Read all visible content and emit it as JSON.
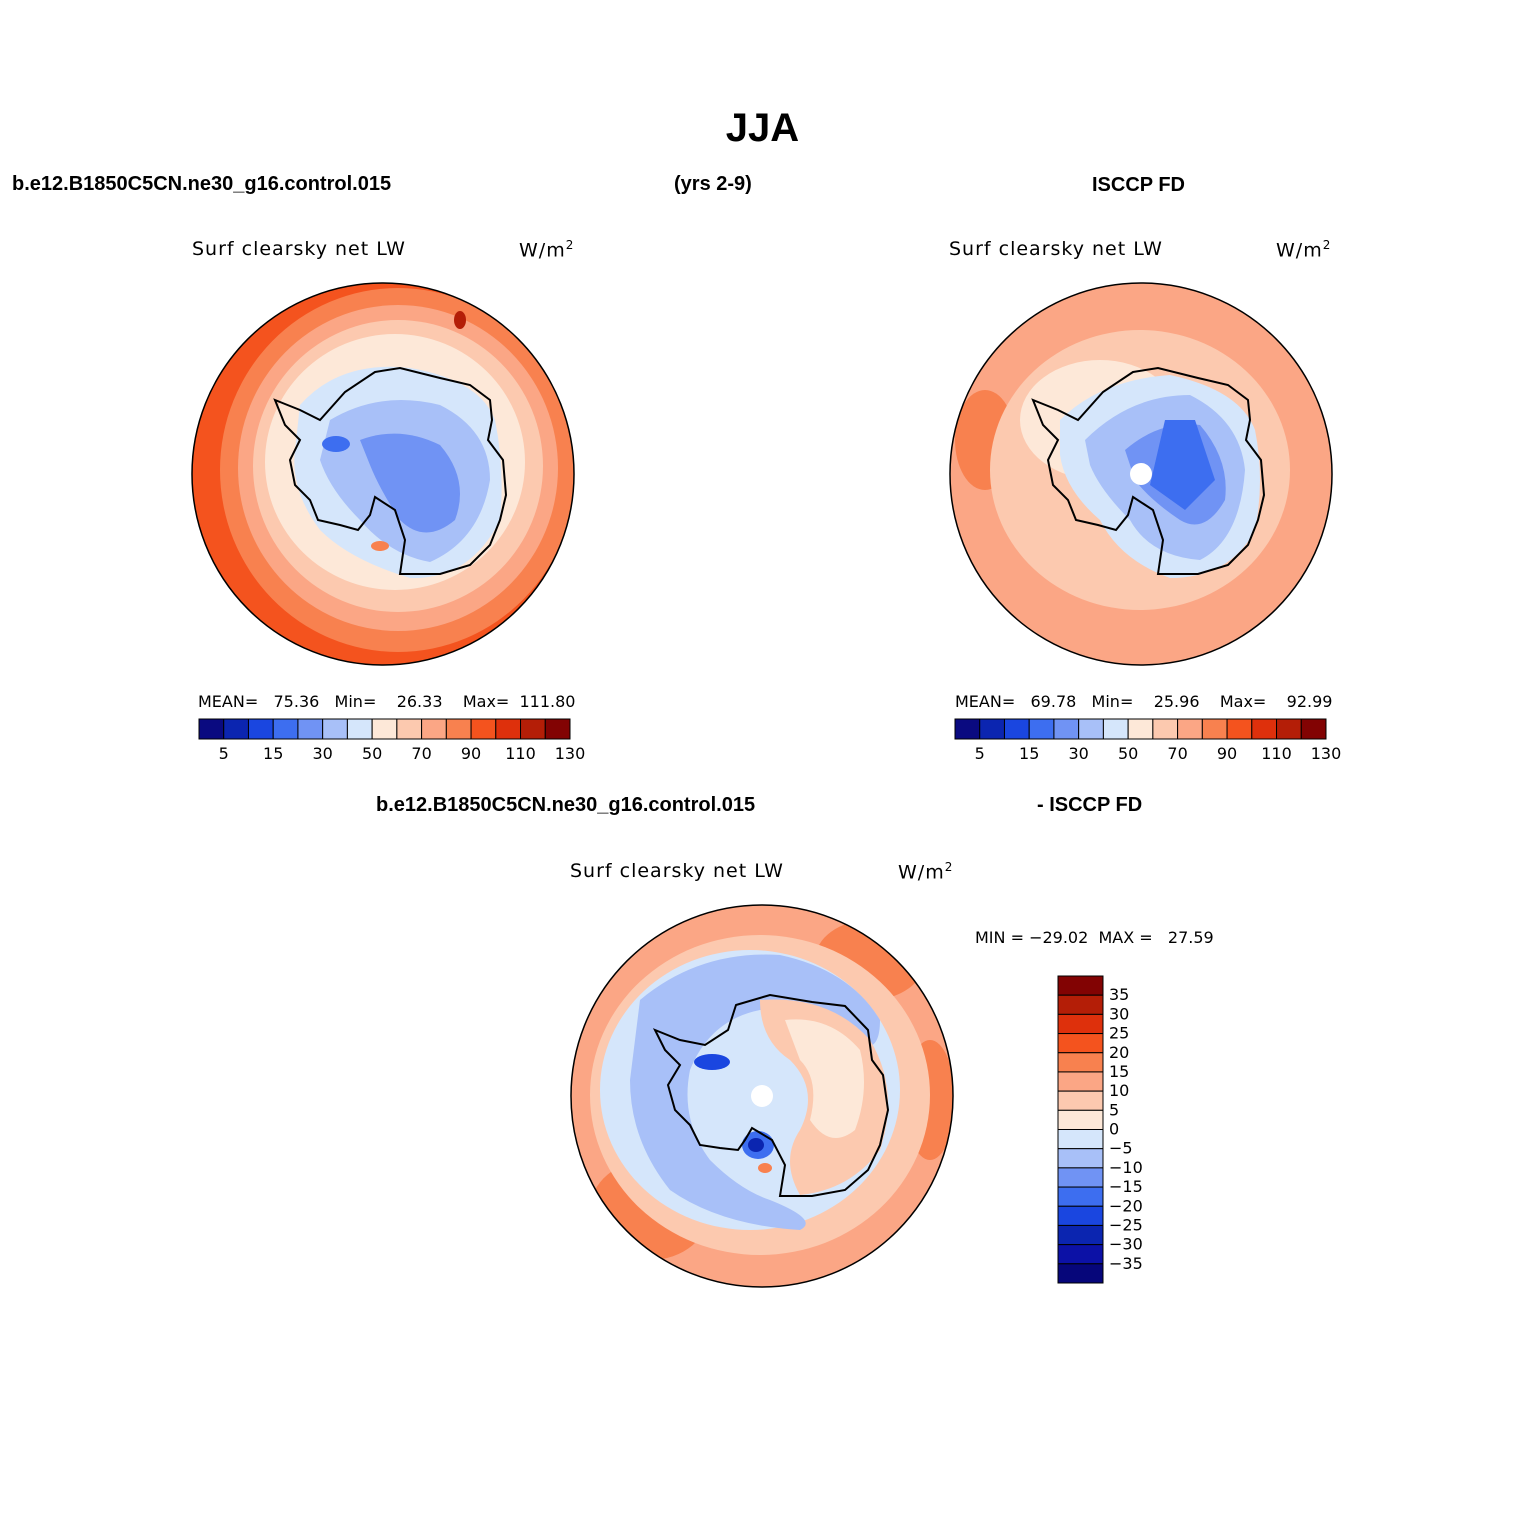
{
  "figure": {
    "title": "JJA",
    "header_case": "b.e12.B1850C5CN.ne30_g16.control.015",
    "header_years": "(yrs 2-9)",
    "header_obs": "ISCCP FD",
    "diff_case": "b.e12.B1850C5CN.ne30_g16.control.015",
    "diff_obs": "- ISCCP FD"
  },
  "panels": {
    "model": {
      "variable": "Surf clearsky net LW",
      "units": "W/m",
      "units_sup": "2",
      "stats_text": "MEAN=   75.36   Min=    26.33    Max=  111.80"
    },
    "obs": {
      "variable": "Surf clearsky net LW",
      "units": "W/m",
      "units_sup": "2",
      "stats_text": "MEAN=   69.78   Min=    25.96    Max=    92.99"
    },
    "diff": {
      "variable": "Surf clearsky net LW",
      "units": "W/m",
      "units_sup": "2",
      "stats_text": "MIN = −29.02  MAX =   27.59"
    }
  },
  "colorbar_main": {
    "colors": [
      "#0a0a80",
      "#0b25b0",
      "#1a46e0",
      "#3d6ef0",
      "#7093f4",
      "#a8c0f8",
      "#d5e6fb",
      "#fde8d8",
      "#fcc9af",
      "#fba685",
      "#f8814f",
      "#f4531e",
      "#de300c",
      "#b41e07",
      "#820303"
    ],
    "tick_labels": [
      "5",
      "15",
      "30",
      "50",
      "70",
      "90",
      "110",
      "130"
    ]
  },
  "colorbar_diff": {
    "colors": [
      "#820303",
      "#b41e07",
      "#de300c",
      "#f4531e",
      "#f8814f",
      "#fba685",
      "#fcc9af",
      "#fde8d8",
      "#d5e6fb",
      "#a8c0f8",
      "#7093f4",
      "#3d6ef0",
      "#1a46e0",
      "#0b25b0",
      "#0c11a6",
      "#06067a"
    ],
    "tick_labels": [
      "35",
      "30",
      "25",
      "20",
      "15",
      "10",
      "5",
      "0",
      "−5",
      "−10",
      "−15",
      "−20",
      "−25",
      "−30",
      "−35"
    ]
  }
}
